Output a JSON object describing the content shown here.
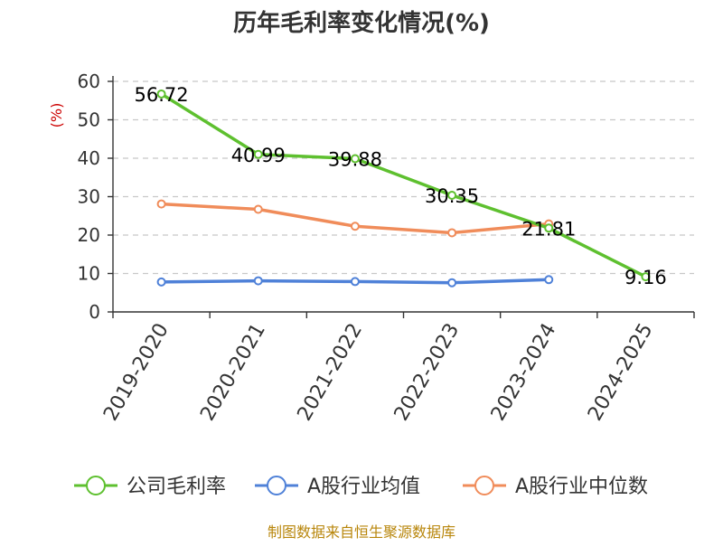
{
  "chart_data": {
    "type": "line",
    "title": "历年毛利率变化情况(%)",
    "ylabel": "(%)",
    "xlabel": "",
    "ylim": [
      0,
      60
    ],
    "yticks": [
      0,
      10,
      20,
      30,
      40,
      50,
      60
    ],
    "grid": true,
    "legend_position": "bottom",
    "categories": [
      "2019-2020",
      "2020-2021",
      "2021-2022",
      "2022-2023",
      "2023-2024",
      "2024-2025"
    ],
    "series": [
      {
        "name": "公司毛利率",
        "color": "#5ec02f",
        "values": [
          56.72,
          40.99,
          39.88,
          30.35,
          21.81,
          9.16
        ],
        "labels": [
          "56.72",
          "40.99",
          "39.88",
          "30.35",
          "21.81",
          "9.16"
        ]
      },
      {
        "name": "A股行业均值",
        "color": "#4f81d8",
        "values": [
          7.8,
          8.1,
          7.9,
          7.6,
          8.4,
          null
        ]
      },
      {
        "name": "A股行业中位数",
        "color": "#f08c5a",
        "values": [
          28.1,
          26.7,
          22.3,
          20.6,
          22.9,
          null
        ]
      }
    ]
  },
  "source": "制图数据来自恒生聚源数据库"
}
